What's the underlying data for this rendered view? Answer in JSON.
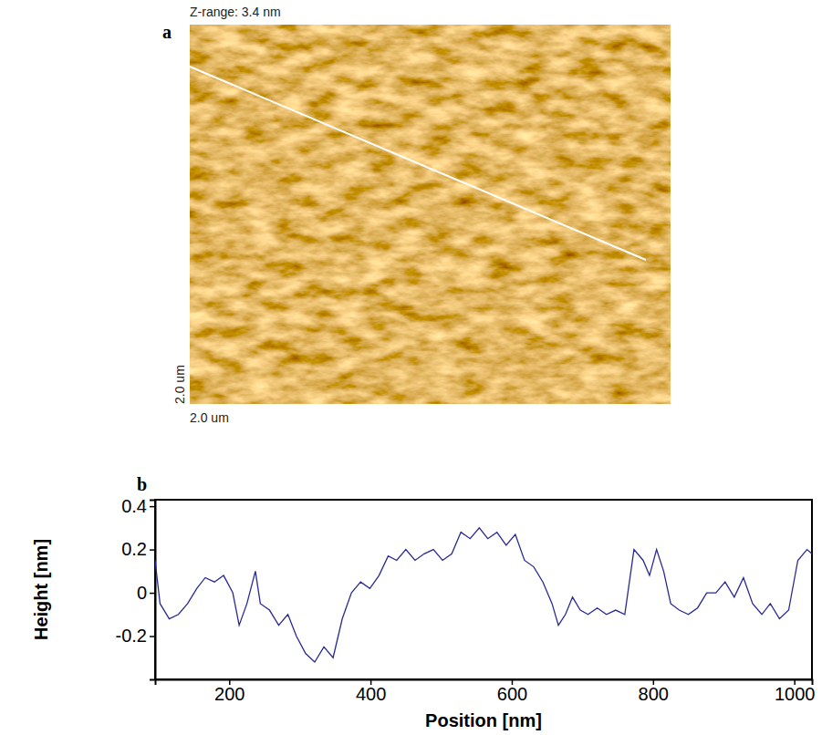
{
  "chart_data": [
    {
      "type": "image",
      "panel_label": "a",
      "title": "Z-range: 3.4 nm",
      "x_label": "2.0 um",
      "y_label": "2.0 um"
    },
    {
      "type": "line",
      "panel_label": "b",
      "x_label": "Position [nm]",
      "y_label": "Height [nm]",
      "x": [
        95,
        102,
        115,
        128,
        141,
        154,
        166,
        179,
        192,
        205,
        214,
        225,
        237,
        244,
        257,
        270,
        283,
        295,
        308,
        321,
        334,
        347,
        360,
        373,
        386,
        399,
        412,
        425,
        437,
        450,
        463,
        476,
        489,
        502,
        515,
        528,
        541,
        554,
        566,
        579,
        592,
        605,
        618,
        631,
        644,
        657,
        666,
        676,
        686,
        697,
        708,
        721,
        734,
        747,
        760,
        773,
        786,
        795,
        805,
        815,
        825,
        837,
        850,
        863,
        876,
        889,
        902,
        915,
        928,
        941,
        954,
        966,
        979,
        992,
        1005,
        1018,
        1025
      ],
      "values": [
        0.15,
        -0.05,
        -0.12,
        -0.1,
        -0.05,
        0.02,
        0.07,
        0.05,
        0.08,
        0.0,
        -0.15,
        -0.05,
        0.1,
        -0.05,
        -0.08,
        -0.15,
        -0.1,
        -0.2,
        -0.28,
        -0.32,
        -0.25,
        -0.3,
        -0.12,
        0.0,
        0.05,
        0.02,
        0.08,
        0.17,
        0.15,
        0.2,
        0.15,
        0.18,
        0.2,
        0.15,
        0.18,
        0.28,
        0.25,
        0.3,
        0.25,
        0.28,
        0.22,
        0.27,
        0.15,
        0.12,
        0.05,
        -0.05,
        -0.15,
        -0.1,
        -0.02,
        -0.08,
        -0.1,
        -0.07,
        -0.1,
        -0.08,
        -0.1,
        0.2,
        0.15,
        0.08,
        0.2,
        0.1,
        -0.05,
        -0.08,
        -0.1,
        -0.07,
        0.0,
        0.0,
        0.05,
        -0.02,
        0.07,
        -0.05,
        -0.1,
        -0.05,
        -0.12,
        -0.08,
        0.15,
        0.2,
        0.18
      ],
      "color": "#2a2a96",
      "xlim": [
        95,
        1025
      ],
      "ylim": [
        -0.4,
        0.43
      ],
      "xticks": [
        200,
        400,
        600,
        800,
        1000
      ],
      "yticks": [
        -0.2,
        0,
        0.2,
        0.4
      ]
    }
  ]
}
